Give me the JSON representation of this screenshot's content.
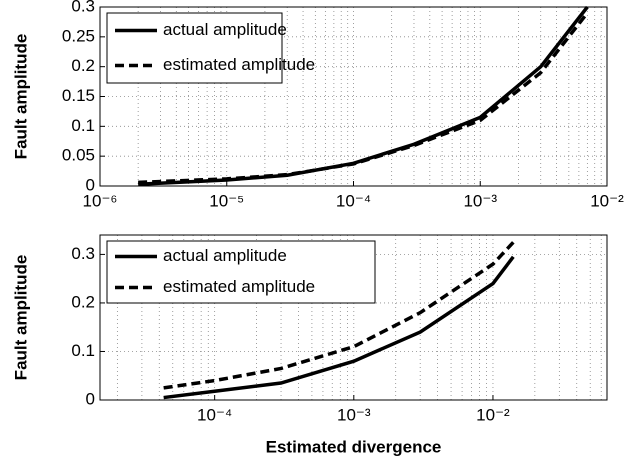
{
  "chart_data": [
    {
      "type": "line",
      "ylabel": "Fault amplitude",
      "log_x": true,
      "grid": true,
      "legend": "upper left",
      "xlim": [
        1e-06,
        0.01
      ],
      "xticks": [
        {
          "value": 1e-06,
          "label": "10⁻⁶"
        },
        {
          "value": 1e-05,
          "label": "10⁻⁵"
        },
        {
          "value": 0.0001,
          "label": "10⁻⁴"
        },
        {
          "value": 0.001,
          "label": "10⁻³"
        },
        {
          "value": 0.01,
          "label": "10⁻²"
        }
      ],
      "ylim": [
        0,
        0.3
      ],
      "yticks": [
        0,
        0.05,
        0.1,
        0.15,
        0.2,
        0.25,
        0.3
      ],
      "x": [
        2e-06,
        1e-05,
        3e-05,
        0.0001,
        0.0003,
        0.001,
        0.003,
        0.007
      ],
      "series": [
        {
          "name": "actual amplitude",
          "color": "#000000",
          "dash": false,
          "values": [
            0.003,
            0.01,
            0.018,
            0.038,
            0.07,
            0.115,
            0.2,
            0.3
          ]
        },
        {
          "name": "estimated amplitude",
          "color": "#000000",
          "dash": true,
          "values": [
            0.006,
            0.012,
            0.019,
            0.037,
            0.068,
            0.11,
            0.19,
            0.29
          ]
        }
      ]
    },
    {
      "type": "line",
      "ylabel": "Fault amplitude",
      "xlabel": "Estimated divergence",
      "log_x": true,
      "grid": true,
      "legend": "upper left",
      "xlim": [
        1.5e-05,
        0.066
      ],
      "xticks": [
        {
          "value": 0.0001,
          "label": "10⁻⁴"
        },
        {
          "value": 0.001,
          "label": "10⁻³"
        },
        {
          "value": 0.01,
          "label": "10⁻²"
        }
      ],
      "ylim": [
        0,
        0.34
      ],
      "yticks": [
        0,
        0.1,
        0.2,
        0.3
      ],
      "x": [
        4.3e-05,
        0.0001,
        0.0003,
        0.001,
        0.003,
        0.01,
        0.014
      ],
      "series": [
        {
          "name": "actual amplitude",
          "color": "#000000",
          "dash": false,
          "values": [
            0.005,
            0.018,
            0.035,
            0.08,
            0.14,
            0.24,
            0.295
          ]
        },
        {
          "name": "estimated amplitude",
          "color": "#000000",
          "dash": true,
          "values": [
            0.025,
            0.04,
            0.065,
            0.11,
            0.18,
            0.28,
            0.325
          ]
        }
      ]
    }
  ]
}
